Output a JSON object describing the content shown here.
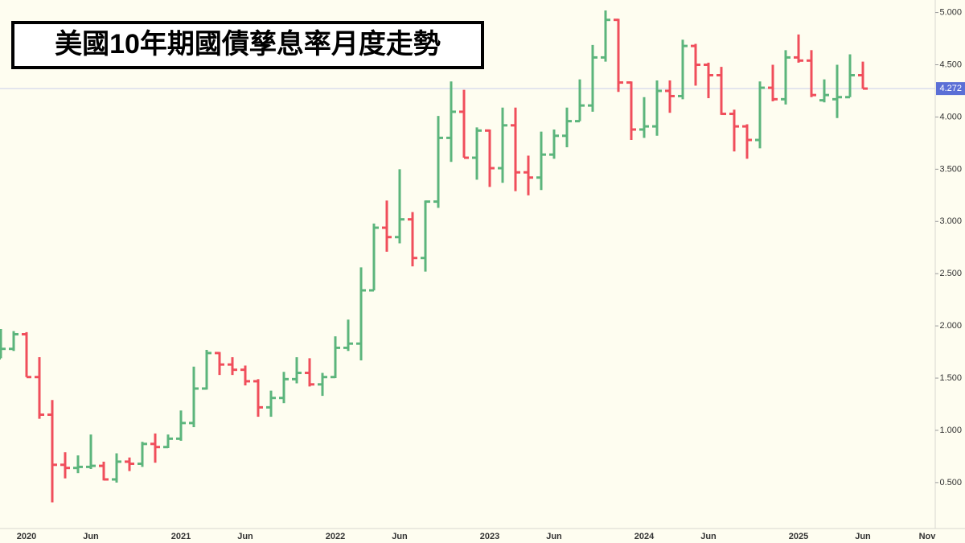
{
  "chart_data": {
    "type": "ohlc",
    "title": "美國10年期國債孳息率月度走勢",
    "up_color": "#5cb57c",
    "down_color": "#f04e5b",
    "last_line_color": "#c9cdea",
    "last_label_color": "#5b6fd6",
    "categories": [
      null,
      null,
      "2020",
      null,
      null,
      null,
      null,
      "Jun",
      null,
      null,
      null,
      null,
      null,
      null,
      "2021",
      null,
      null,
      null,
      null,
      "Jun",
      null,
      null,
      null,
      null,
      null,
      null,
      "2022",
      null,
      null,
      null,
      null,
      "Jun",
      null,
      null,
      null,
      null,
      null,
      null,
      "2023",
      null,
      null,
      null,
      null,
      "Jun",
      null,
      null,
      null,
      null,
      null,
      null,
      "2024",
      null,
      null,
      null,
      null,
      "Jun",
      null,
      null,
      null,
      null,
      null,
      null,
      "2025",
      null,
      null,
      null,
      null,
      "Jun",
      null,
      null,
      null,
      null,
      "Nov"
    ],
    "open": [
      1.69,
      1.78,
      1.92,
      1.51,
      1.15,
      0.67,
      0.64,
      0.65,
      0.66,
      0.53,
      0.7,
      0.68,
      0.87,
      0.84,
      0.92,
      1.07,
      1.4,
      1.74,
      1.63,
      1.58,
      1.47,
      1.22,
      1.31,
      1.49,
      1.55,
      1.44,
      1.51,
      1.79,
      1.83,
      2.34,
      2.94,
      2.85,
      3.02,
      2.65,
      3.19,
      3.8,
      4.05,
      3.61,
      3.87,
      3.51,
      3.92,
      3.47,
      3.42,
      3.64,
      3.82,
      3.96,
      4.11,
      4.57,
      4.93,
      4.33,
      3.88,
      3.91,
      4.25,
      4.2,
      4.68,
      4.5,
      4.4,
      4.03,
      3.91,
      3.78,
      4.28,
      4.17,
      4.57,
      4.54,
      4.16,
      4.17,
      4.19,
      4.4,
      null,
      null,
      null,
      null,
      null
    ],
    "high": [
      1.97,
      1.95,
      1.94,
      1.7,
      1.29,
      0.79,
      0.76,
      0.96,
      0.7,
      0.78,
      0.74,
      0.89,
      0.97,
      0.96,
      1.19,
      1.61,
      1.77,
      1.75,
      1.7,
      1.62,
      1.49,
      1.38,
      1.56,
      1.7,
      1.69,
      1.55,
      1.9,
      2.06,
      2.56,
      2.98,
      3.2,
      3.5,
      3.09,
      3.2,
      4.01,
      4.34,
      4.26,
      3.9,
      3.88,
      4.09,
      4.09,
      3.63,
      3.86,
      3.88,
      4.09,
      4.36,
      4.69,
      5.02,
      4.94,
      4.34,
      4.19,
      4.35,
      4.35,
      4.74,
      4.7,
      4.52,
      4.48,
      4.07,
      3.93,
      4.34,
      4.5,
      4.64,
      4.79,
      4.64,
      4.36,
      4.5,
      4.6,
      4.53,
      null,
      null,
      null,
      null,
      null
    ],
    "low": [
      1.69,
      1.76,
      1.51,
      1.11,
      0.31,
      0.54,
      0.59,
      0.63,
      0.52,
      0.5,
      0.61,
      0.65,
      0.69,
      0.83,
      0.9,
      1.03,
      1.39,
      1.53,
      1.53,
      1.43,
      1.13,
      1.13,
      1.26,
      1.45,
      1.42,
      1.33,
      1.5,
      1.76,
      1.67,
      2.34,
      2.71,
      2.79,
      2.57,
      2.52,
      3.13,
      3.57,
      3.61,
      3.4,
      3.33,
      3.37,
      3.29,
      3.25,
      3.3,
      3.6,
      3.71,
      3.96,
      4.05,
      4.53,
      4.24,
      3.78,
      3.8,
      3.82,
      4.04,
      4.17,
      4.3,
      4.18,
      4.02,
      3.67,
      3.6,
      3.7,
      4.15,
      4.12,
      4.52,
      4.19,
      4.14,
      3.99,
      4.19,
      4.27,
      null,
      null,
      null,
      null,
      null
    ],
    "close": [
      1.78,
      1.92,
      1.51,
      1.15,
      0.67,
      0.64,
      0.65,
      0.66,
      0.53,
      0.7,
      0.68,
      0.87,
      0.84,
      0.92,
      1.07,
      1.4,
      1.74,
      1.63,
      1.58,
      1.47,
      1.22,
      1.31,
      1.49,
      1.55,
      1.44,
      1.51,
      1.79,
      1.83,
      2.34,
      2.94,
      2.85,
      3.02,
      2.65,
      3.19,
      3.8,
      4.05,
      3.61,
      3.87,
      3.51,
      3.92,
      3.47,
      3.42,
      3.64,
      3.82,
      3.96,
      4.11,
      4.57,
      4.93,
      4.33,
      3.88,
      3.91,
      4.25,
      4.2,
      4.68,
      4.5,
      4.4,
      4.03,
      3.91,
      3.78,
      4.28,
      4.17,
      4.57,
      4.54,
      4.21,
      4.21,
      4.19,
      4.4,
      4.272,
      null,
      null,
      null,
      null,
      null
    ],
    "ylim": [
      0.06,
      5.12
    ],
    "yticks": [
      {
        "value": 0.5,
        "label": "0.500"
      },
      {
        "value": 1.0,
        "label": "1.000"
      },
      {
        "value": 1.5,
        "label": "1.500"
      },
      {
        "value": 2.0,
        "label": "2.000"
      },
      {
        "value": 2.5,
        "label": "2.500"
      },
      {
        "value": 3.0,
        "label": "3.000"
      },
      {
        "value": 3.5,
        "label": "3.500"
      },
      {
        "value": 4.0,
        "label": "4.000"
      },
      {
        "value": 4.5,
        "label": "4.500"
      },
      {
        "value": 5.0,
        "label": "5.000"
      }
    ]
  }
}
